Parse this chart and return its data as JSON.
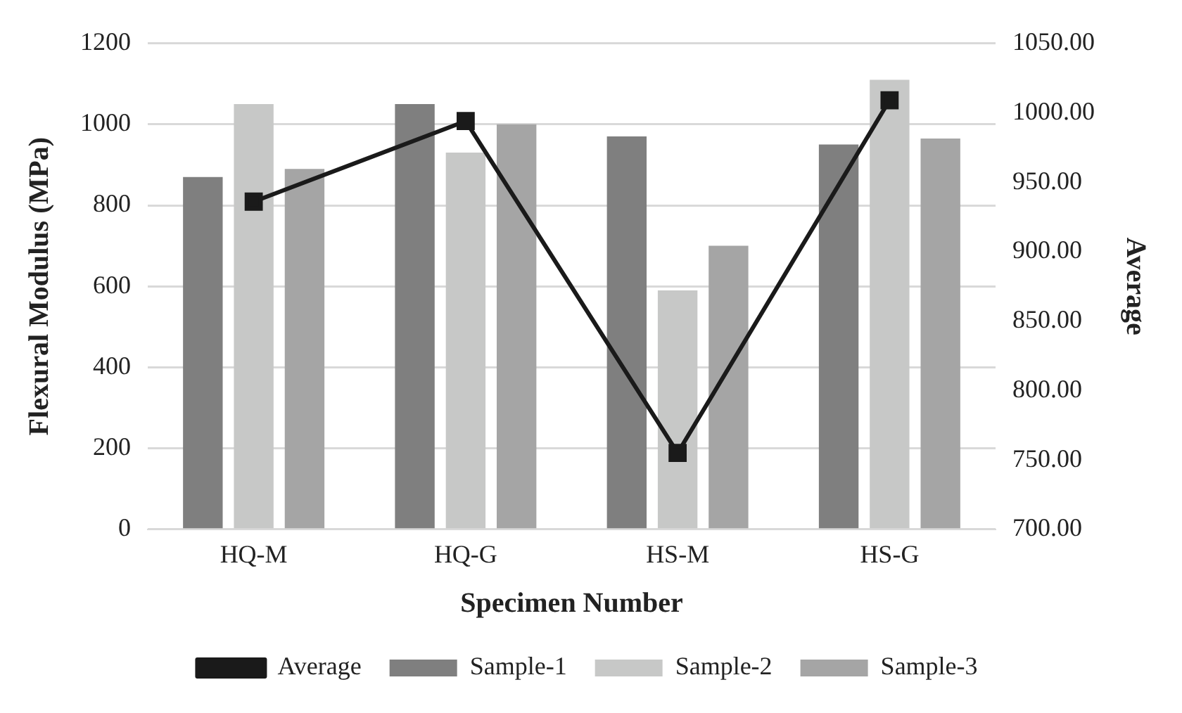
{
  "chart_data": {
    "type": "bar",
    "xlabel": "Specimen Number",
    "ylabel": "Flexural Modulus (MPa)",
    "y2label": "Average",
    "categories": [
      "HQ-M",
      "HQ-G",
      "HS-M",
      "HS-G"
    ],
    "series": [
      {
        "name": "Sample-1",
        "color": "#7f7f7f",
        "values": [
          870,
          1050,
          970,
          950
        ]
      },
      {
        "name": "Sample-2",
        "color": "#c7c8c7",
        "values": [
          1050,
          930,
          590,
          1110
        ]
      },
      {
        "name": "Sample-3",
        "color": "#a5a5a5",
        "values": [
          890,
          1000,
          700,
          965
        ]
      },
      {
        "name": "Average",
        "type": "line",
        "axis": "y2",
        "color": "#1a1a1a",
        "values": [
          936,
          994,
          755,
          1009
        ]
      }
    ],
    "ylim": [
      0,
      1200
    ],
    "yticks": [
      0,
      200,
      400,
      600,
      800,
      1000,
      1200
    ],
    "y2lim": [
      700,
      1050
    ],
    "y2ticks": [
      {
        "value": 700,
        "label": "700.00"
      },
      {
        "value": 750,
        "label": "750.00"
      },
      {
        "value": 800,
        "label": "800.00"
      },
      {
        "value": 850,
        "label": "850.00"
      },
      {
        "value": 900,
        "label": "900.00"
      },
      {
        "value": 950,
        "label": "950.00"
      },
      {
        "value": 1000,
        "label": "1000.00"
      },
      {
        "value": 1050,
        "label": "1050.00"
      }
    ],
    "grid": "y",
    "legend": "bottom",
    "marker": "square",
    "line_style": "solid"
  }
}
